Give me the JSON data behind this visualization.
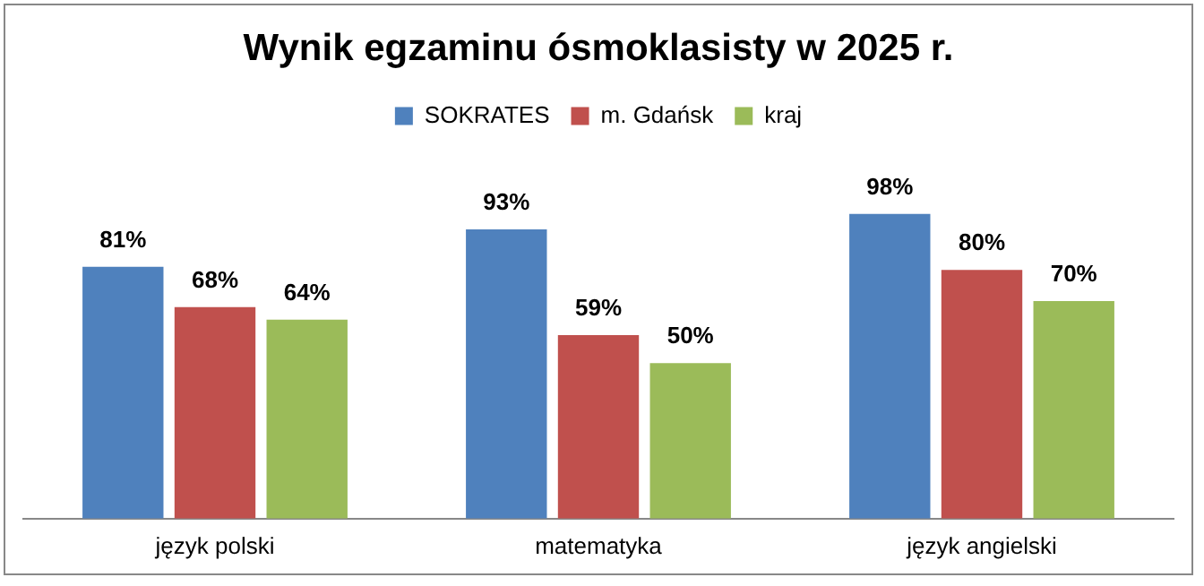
{
  "chart_data": {
    "type": "bar",
    "title": "Wynik egzaminu ósmoklasisty w 2025 r.",
    "categories": [
      "język polski",
      "matematyka",
      "język angielski"
    ],
    "series": [
      {
        "name": "SOKRATES",
        "color": "#4f81bd",
        "values": [
          81,
          93,
          98
        ],
        "value_labels": [
          "81%",
          "93%",
          "98%"
        ]
      },
      {
        "name": "m. Gdańsk",
        "color": "#c0504d",
        "values": [
          68,
          59,
          80
        ],
        "value_labels": [
          "68%",
          "59%",
          "80%"
        ]
      },
      {
        "name": "kraj",
        "color": "#9bbb59",
        "values": [
          64,
          50,
          70
        ],
        "value_labels": [
          "64%",
          "50%",
          "70%"
        ]
      }
    ],
    "legend": "top",
    "grid": false,
    "tick_labels": "x"
  }
}
